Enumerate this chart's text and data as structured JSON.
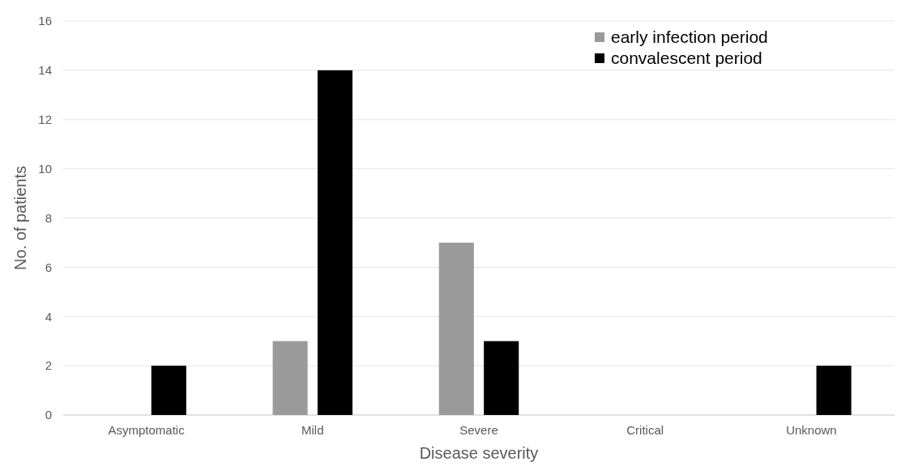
{
  "chart_data": {
    "type": "bar",
    "xlabel": "Disease severity",
    "ylabel": "No. of patients",
    "categories": [
      "Asymptomatic",
      "Mild",
      "Severe",
      "Critical",
      "Unknown"
    ],
    "series": [
      {
        "name": "early infection period",
        "color": "#9a9a9a",
        "values": [
          0,
          3,
          7,
          0,
          0
        ]
      },
      {
        "name": "convalescent period",
        "color": "#000000",
        "values": [
          2,
          14,
          3,
          0,
          2
        ]
      }
    ],
    "ylim": [
      0,
      16
    ],
    "yticks": [
      0,
      2,
      4,
      6,
      8,
      10,
      12,
      14,
      16
    ],
    "grid": "y",
    "legend": "top right"
  }
}
